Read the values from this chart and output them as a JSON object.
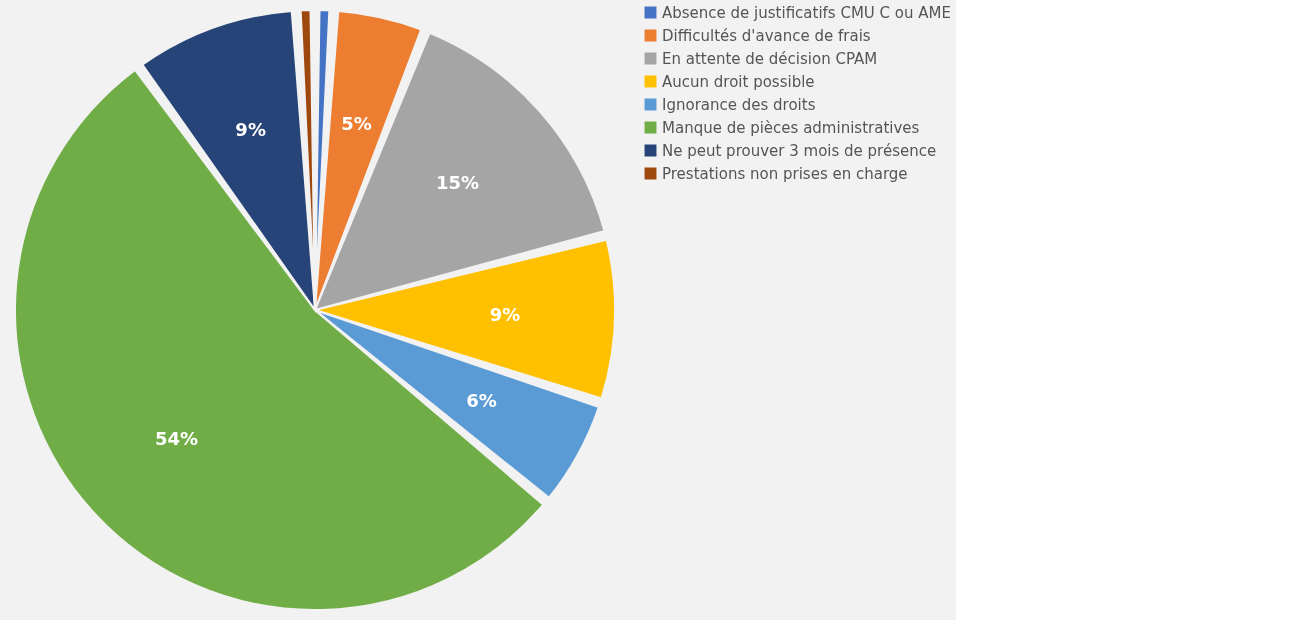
{
  "chart_data": {
    "type": "pie",
    "categories": [
      "Absence de justificatifs CMU C ou AME",
      "Difficultés d'avance de frais",
      "En attente de décision CPAM",
      "Aucun droit possible",
      "Ignorance des droits",
      "Manque de pièces administratives",
      "Ne peut prouver 3 mois de présence",
      "Prestations non prises en charge"
    ],
    "values": [
      1,
      5,
      15,
      9,
      6,
      54,
      9,
      1
    ],
    "colors": [
      "#4472c4",
      "#ed7d31",
      "#a5a5a5",
      "#ffc000",
      "#5b9bd5",
      "#70ad47",
      "#264478",
      "#9e480e"
    ],
    "value_labels": [
      null,
      "5%",
      "15%",
      "9%",
      "6%",
      "54%",
      "9%",
      null
    ],
    "legend": "right"
  }
}
